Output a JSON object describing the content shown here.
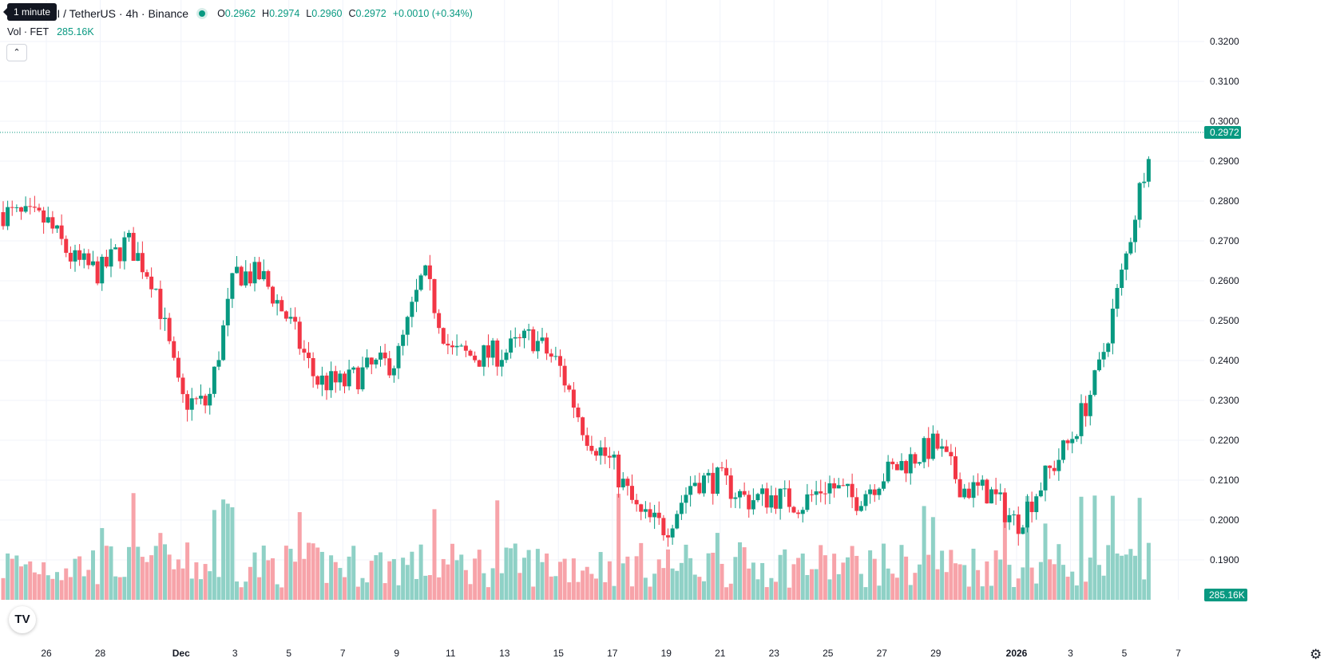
{
  "header": {
    "tooltip": "1 minute",
    "symbol": "AI / TetherUS · 4h · Binance",
    "ohlc": [
      {
        "k": "O",
        "v": "0.2962"
      },
      {
        "k": "H",
        "v": "0.2974"
      },
      {
        "k": "L",
        "v": "0.2960"
      },
      {
        "k": "C",
        "v": "0.2972"
      }
    ],
    "change": "+0.0010 (+0.34%)"
  },
  "volume_legend": {
    "label": "Vol · FET",
    "value": "285.16K"
  },
  "colors": {
    "up": "#089981",
    "down": "#f23645",
    "vol_up": "#8fd1c6",
    "vol_down": "#f7a3a9",
    "grid": "#f0f3fa",
    "text": "#131722"
  },
  "icons": {
    "collapse": "chevron-up-icon",
    "logo": "tradingview-logo",
    "settings": "gear-icon"
  },
  "chart_data": {
    "type": "candlestick",
    "interval": "4h",
    "current_price": 0.2972,
    "current_price_label": "0.2972",
    "current_volume_label": "285.16K",
    "y_ticks": [
      {
        "value": 0.19,
        "label": "0.1900"
      },
      {
        "value": 0.2,
        "label": "0.2000"
      },
      {
        "value": 0.21,
        "label": "0.2100"
      },
      {
        "value": 0.22,
        "label": "0.2200"
      },
      {
        "value": 0.23,
        "label": "0.2300"
      },
      {
        "value": 0.24,
        "label": "0.2400"
      },
      {
        "value": 0.25,
        "label": "0.2500"
      },
      {
        "value": 0.26,
        "label": "0.2600"
      },
      {
        "value": 0.27,
        "label": "0.2700"
      },
      {
        "value": 0.28,
        "label": "0.2800"
      },
      {
        "value": 0.29,
        "label": "0.2900"
      },
      {
        "value": 0.3,
        "label": "0.3000"
      },
      {
        "value": 0.31,
        "label": "0.3100"
      },
      {
        "value": 0.32,
        "label": "0.3200"
      }
    ],
    "x_ticks": [
      {
        "date": "2025-11-26",
        "label": "26"
      },
      {
        "date": "2025-11-28",
        "label": "28"
      },
      {
        "date": "2025-12-01",
        "label": "Dec"
      },
      {
        "date": "2025-12-03",
        "label": "3"
      },
      {
        "date": "2025-12-05",
        "label": "5"
      },
      {
        "date": "2025-12-07",
        "label": "7"
      },
      {
        "date": "2025-12-09",
        "label": "9"
      },
      {
        "date": "2025-12-11",
        "label": "11"
      },
      {
        "date": "2025-12-13",
        "label": "13"
      },
      {
        "date": "2025-12-15",
        "label": "15"
      },
      {
        "date": "2025-12-17",
        "label": "17"
      },
      {
        "date": "2025-12-19",
        "label": "19"
      },
      {
        "date": "2025-12-21",
        "label": "21"
      },
      {
        "date": "2025-12-23",
        "label": "23"
      },
      {
        "date": "2025-12-25",
        "label": "25"
      },
      {
        "date": "2025-12-27",
        "label": "27"
      },
      {
        "date": "2025-12-29",
        "label": "29"
      },
      {
        "date": "2026-01-01",
        "label": "2026"
      },
      {
        "date": "2026-01-03",
        "label": "3"
      },
      {
        "date": "2026-01-05",
        "label": "5"
      },
      {
        "date": "2026-01-07",
        "label": "7"
      }
    ],
    "close_path": [
      [
        "2025-11-24",
        0.278
      ],
      [
        "2025-11-25",
        0.276
      ],
      [
        "2025-11-26",
        0.275
      ],
      [
        "2025-11-27",
        0.265
      ],
      [
        "2025-11-28",
        0.262
      ],
      [
        "2025-11-29",
        0.27
      ],
      [
        "2025-11-30",
        0.26
      ],
      [
        "2025-12-01",
        0.23
      ],
      [
        "2025-12-02",
        0.229
      ],
      [
        "2025-12-03",
        0.262
      ],
      [
        "2025-12-04",
        0.261
      ],
      [
        "2025-12-05",
        0.25
      ],
      [
        "2025-12-06",
        0.235
      ],
      [
        "2025-12-07",
        0.234
      ],
      [
        "2025-12-08",
        0.238
      ],
      [
        "2025-12-09",
        0.24
      ],
      [
        "2025-12-10",
        0.262
      ],
      [
        "2025-12-11",
        0.242
      ],
      [
        "2025-12-12",
        0.241
      ],
      [
        "2025-12-13",
        0.242
      ],
      [
        "2025-12-14",
        0.246
      ],
      [
        "2025-12-15",
        0.239
      ],
      [
        "2025-12-16",
        0.222
      ],
      [
        "2025-12-17",
        0.214
      ],
      [
        "2025-12-18",
        0.201
      ],
      [
        "2025-12-19",
        0.198
      ],
      [
        "2025-12-20",
        0.21
      ],
      [
        "2025-12-21",
        0.21
      ],
      [
        "2025-12-22",
        0.205
      ],
      [
        "2025-12-23",
        0.206
      ],
      [
        "2025-12-24",
        0.204
      ],
      [
        "2025-12-25",
        0.209
      ],
      [
        "2025-12-26",
        0.205
      ],
      [
        "2025-12-27",
        0.211
      ],
      [
        "2025-12-28",
        0.215
      ],
      [
        "2025-12-29",
        0.219
      ],
      [
        "2025-12-30",
        0.208
      ],
      [
        "2025-12-31",
        0.207
      ],
      [
        "2026-01-01",
        0.199
      ],
      [
        "2026-01-02",
        0.21
      ],
      [
        "2026-01-03",
        0.22
      ],
      [
        "2026-01-04",
        0.236
      ],
      [
        "2026-01-05",
        0.264
      ],
      [
        "2026-01-06",
        0.2972
      ]
    ],
    "volume_max_k": 1000
  }
}
